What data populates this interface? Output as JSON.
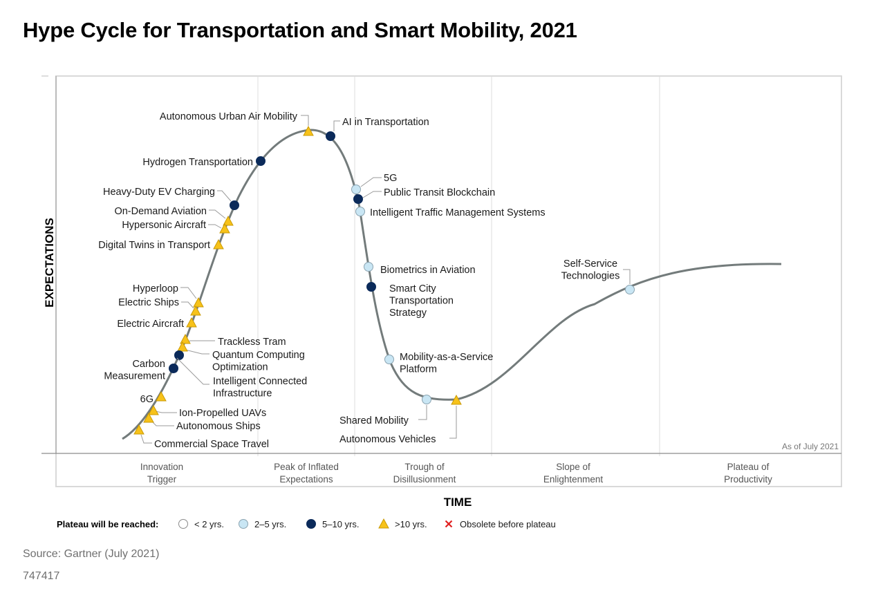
{
  "title": "Hype Cycle for Transportation and Smart Mobility, 2021",
  "axes": {
    "y_label": "EXPECTATIONS",
    "x_label": "TIME"
  },
  "as_of": "As of July 2021",
  "phases": [
    [
      "Innovation",
      "Trigger"
    ],
    [
      "Peak of Inflated",
      "Expectations"
    ],
    [
      "Trough of",
      "Disillusionment"
    ],
    [
      "Slope of",
      "Enlightenment"
    ],
    [
      "Plateau of",
      "Productivity"
    ]
  ],
  "legend": {
    "title": "Plateau will be reached:",
    "items": [
      {
        "label": "< 2 yrs.",
        "marker": "white-circle"
      },
      {
        "label": "2–5 yrs.",
        "marker": "light-blue-circle"
      },
      {
        "label": "5–10 yrs.",
        "marker": "dark-blue-circle"
      },
      {
        "label": ">10 yrs.",
        "marker": "yellow-triangle"
      },
      {
        "label": "Obsolete before plateau",
        "marker": "red-x"
      }
    ]
  },
  "technologies": [
    {
      "name": [
        "Autonomous Urban Air Mobility"
      ],
      "horizon": ">10 yrs."
    },
    {
      "name": [
        "AI in Transportation"
      ],
      "horizon": "5–10 yrs."
    },
    {
      "name": [
        "Hydrogen Transportation"
      ],
      "horizon": "5–10 yrs."
    },
    {
      "name": [
        "5G"
      ],
      "horizon": "2–5 yrs."
    },
    {
      "name": [
        "Public Transit Blockchain"
      ],
      "horizon": "5–10 yrs."
    },
    {
      "name": [
        "Intelligent Traffic Management Systems"
      ],
      "horizon": "2–5 yrs."
    },
    {
      "name": [
        "Heavy-Duty EV Charging"
      ],
      "horizon": "5–10 yrs."
    },
    {
      "name": [
        "On-Demand Aviation"
      ],
      "horizon": ">10 yrs."
    },
    {
      "name": [
        "Hypersonic Aircraft"
      ],
      "horizon": ">10 yrs."
    },
    {
      "name": [
        "Digital Twins in Transport"
      ],
      "horizon": ">10 yrs."
    },
    {
      "name": [
        "Biometrics in Aviation"
      ],
      "horizon": "2–5 yrs."
    },
    {
      "name": [
        "Smart City",
        "Transportation",
        "Strategy"
      ],
      "horizon": "5–10 yrs."
    },
    {
      "name": [
        "Self-Service",
        "Technologies"
      ],
      "horizon": "2–5 yrs."
    },
    {
      "name": [
        "Hyperloop"
      ],
      "horizon": ">10 yrs."
    },
    {
      "name": [
        "Electric Ships"
      ],
      "horizon": ">10 yrs."
    },
    {
      "name": [
        "Electric Aircraft"
      ],
      "horizon": ">10 yrs."
    },
    {
      "name": [
        "Trackless Tram"
      ],
      "horizon": ">10 yrs."
    },
    {
      "name": [
        "Quantum Computing",
        "Optimization"
      ],
      "horizon": ">10 yrs."
    },
    {
      "name": [
        "Carbon",
        "Measurement"
      ],
      "horizon": "5–10 yrs."
    },
    {
      "name": [
        "Intelligent Connected",
        "Infrastructure"
      ],
      "horizon": "5–10 yrs."
    },
    {
      "name": [
        "Mobility-as-a-Service",
        "Platform"
      ],
      "horizon": "2–5 yrs."
    },
    {
      "name": [
        "6G"
      ],
      "horizon": ">10 yrs."
    },
    {
      "name": [
        "Ion-Propelled UAVs"
      ],
      "horizon": ">10 yrs."
    },
    {
      "name": [
        "Autonomous Ships"
      ],
      "horizon": ">10 yrs."
    },
    {
      "name": [
        "Commercial Space Travel"
      ],
      "horizon": ">10 yrs."
    },
    {
      "name": [
        "Shared Mobility"
      ],
      "horizon": "2–5 yrs."
    },
    {
      "name": [
        "Autonomous Vehicles"
      ],
      "horizon": ">10 yrs."
    }
  ],
  "footer": {
    "source": "Source: Gartner (July 2021)",
    "doc_id": "747417"
  }
}
